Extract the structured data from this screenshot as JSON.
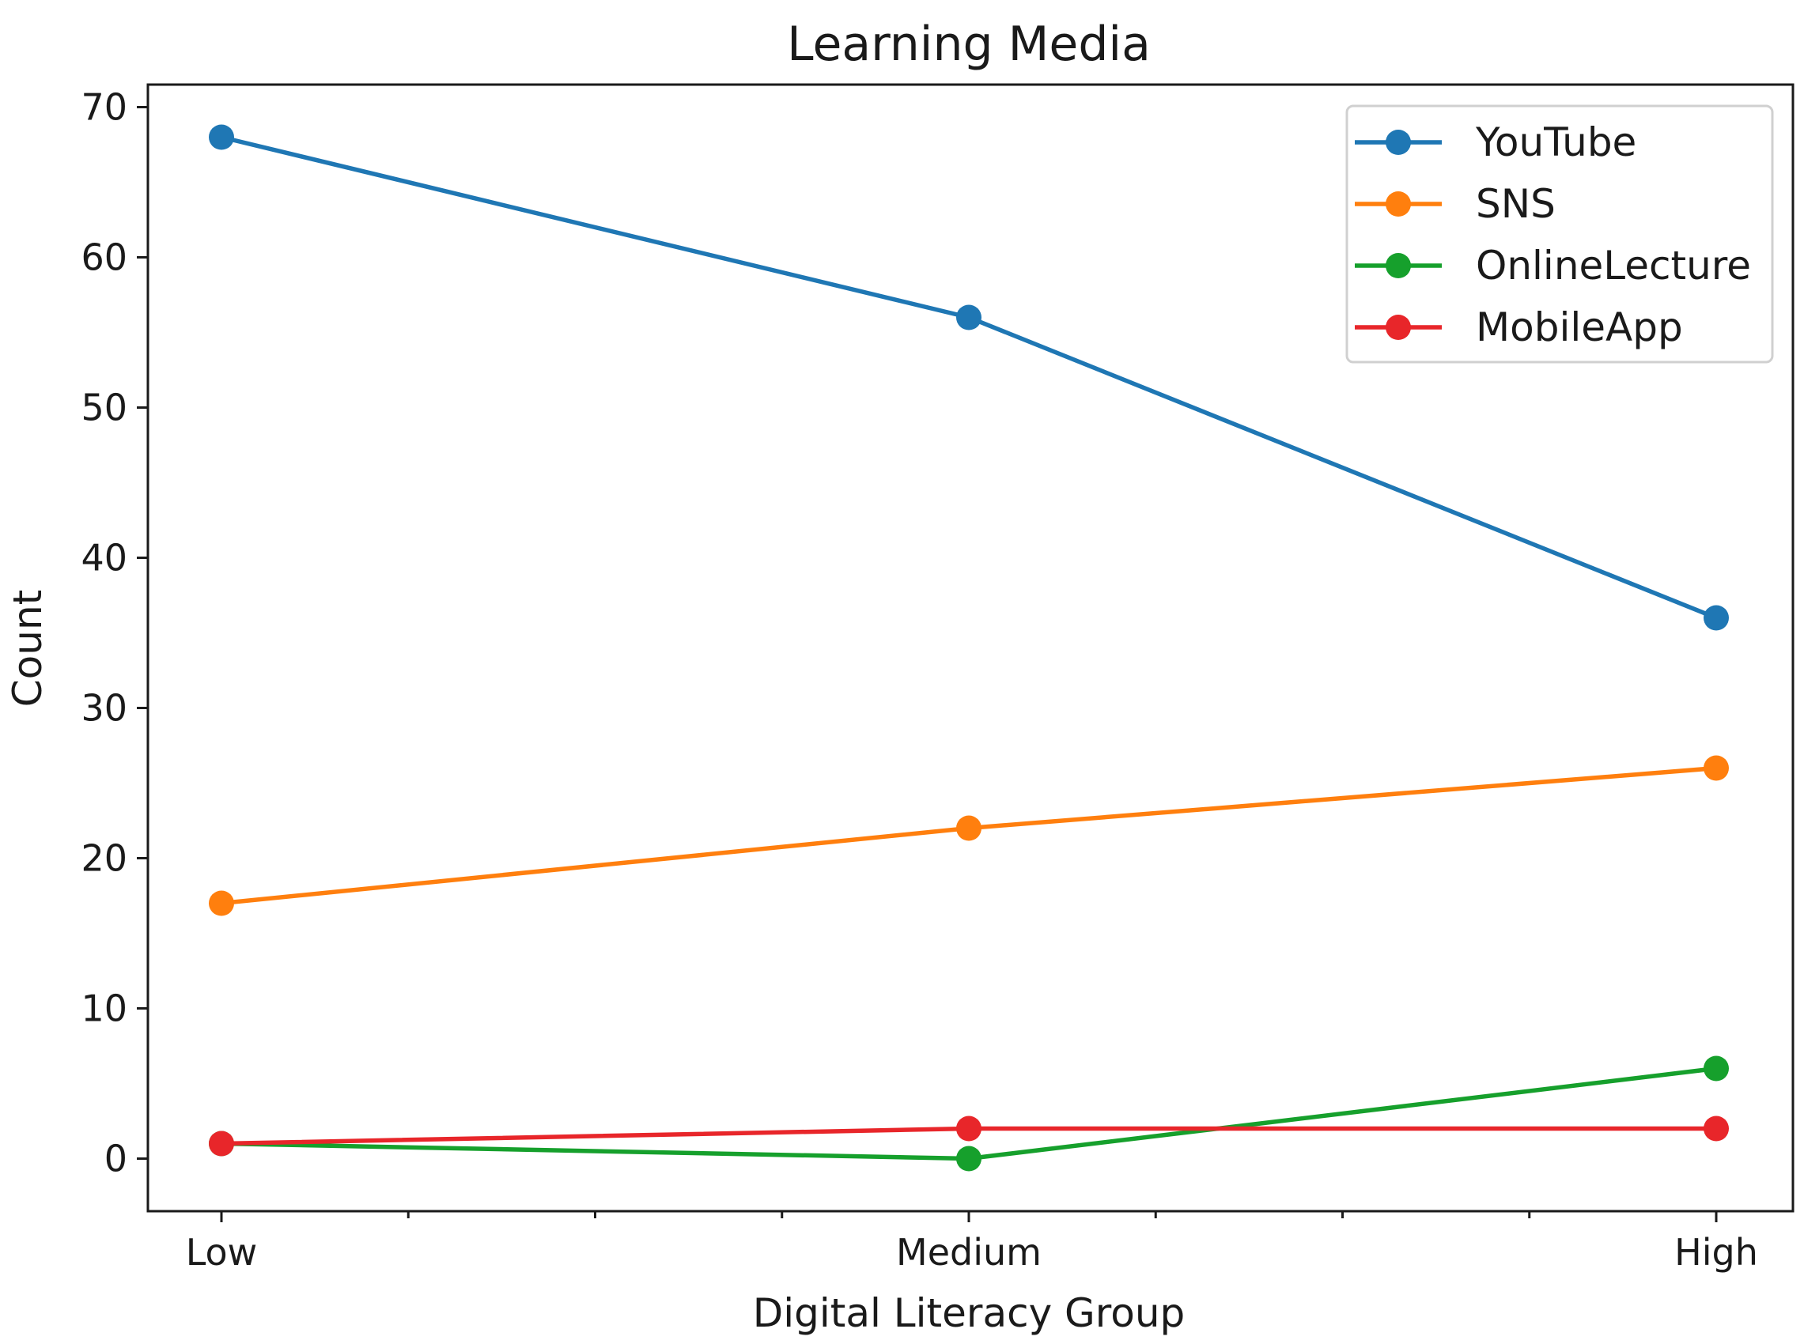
{
  "chart_data": {
    "type": "line",
    "title": "Learning Media",
    "xlabel": "Digital Literacy Group",
    "ylabel": "Count",
    "categories": [
      "Low",
      "Medium",
      "High"
    ],
    "ylim": [
      -3.5,
      71.5
    ],
    "yticks": [
      0,
      10,
      20,
      30,
      40,
      50,
      60,
      70
    ],
    "grid": false,
    "legend_position": "top-right",
    "series": [
      {
        "name": "YouTube",
        "color": "#1f77b4",
        "values": [
          68,
          56,
          36
        ]
      },
      {
        "name": "SNS",
        "color": "#ff7f0e",
        "values": [
          17,
          22,
          26
        ]
      },
      {
        "name": "OnlineLecture",
        "color": "#16a02c",
        "values": [
          1,
          0,
          6
        ]
      },
      {
        "name": "MobileApp",
        "color": "#e8262a",
        "values": [
          1,
          2,
          2
        ]
      }
    ]
  }
}
